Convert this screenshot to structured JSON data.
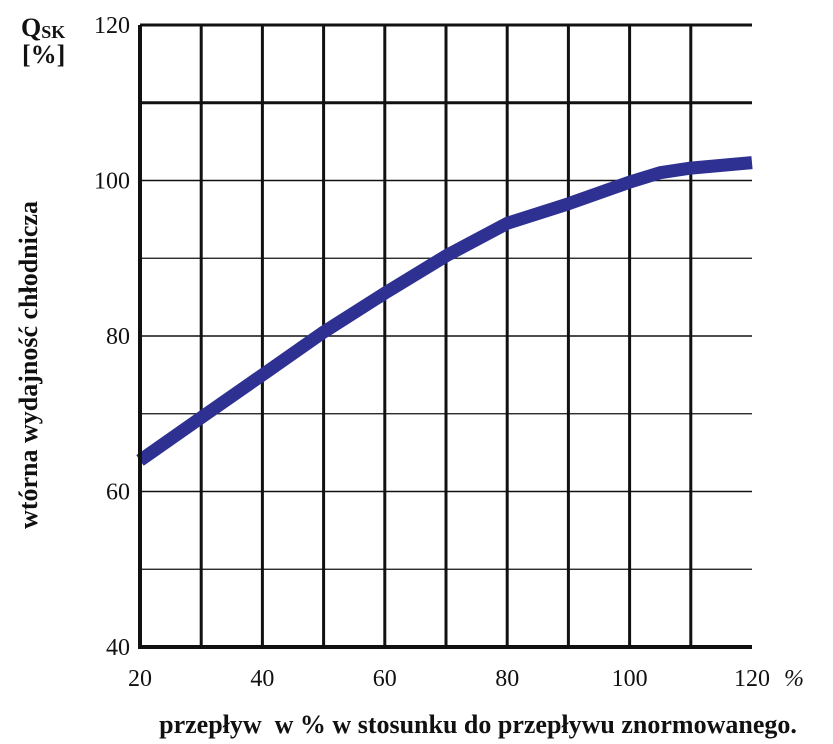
{
  "chart_data": {
    "type": "line",
    "title": "",
    "xlabel": "przepływ  w % w stosunku do przepływu znormowanego.",
    "ylabel": "wtórna wydajność chłodnicza",
    "y_symbol": "Q",
    "y_symbol_subscript": "SK",
    "y_unit": "[%]",
    "x_unit_suffix": "%",
    "xlim": [
      20,
      120
    ],
    "ylim": [
      40,
      120
    ],
    "x_tick_labels": [
      "20",
      "40",
      "60",
      "80",
      "100",
      "120"
    ],
    "y_tick_labels": [
      "40",
      "60",
      "80",
      "100",
      "120"
    ],
    "grid": true,
    "series": [
      {
        "color": "#2e3192",
        "x": [
          20,
          30,
          40,
          50,
          60,
          70,
          80,
          90,
          100,
          105,
          110,
          120
        ],
        "y": [
          64,
          69.5,
          75,
          80.5,
          85.5,
          90.3,
          94.5,
          97,
          99.8,
          101,
          101.6,
          102.3
        ]
      }
    ]
  }
}
